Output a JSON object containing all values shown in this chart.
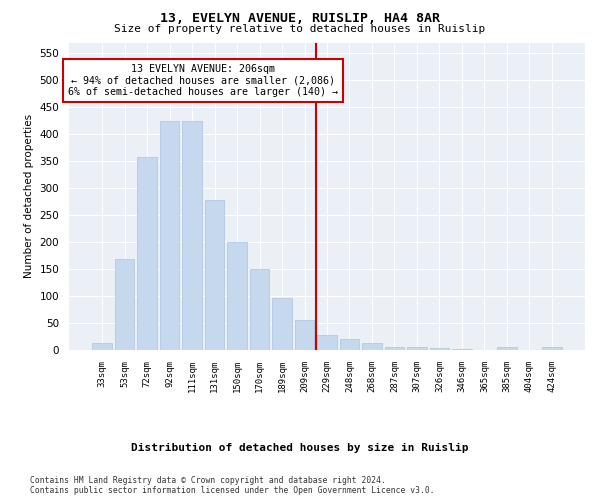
{
  "title1": "13, EVELYN AVENUE, RUISLIP, HA4 8AR",
  "title2": "Size of property relative to detached houses in Ruislip",
  "xlabel": "Distribution of detached houses by size in Ruislip",
  "ylabel": "Number of detached properties",
  "categories": [
    "33sqm",
    "53sqm",
    "72sqm",
    "92sqm",
    "111sqm",
    "131sqm",
    "150sqm",
    "170sqm",
    "189sqm",
    "209sqm",
    "229sqm",
    "248sqm",
    "268sqm",
    "287sqm",
    "307sqm",
    "326sqm",
    "346sqm",
    "365sqm",
    "385sqm",
    "404sqm",
    "424sqm"
  ],
  "values": [
    13,
    168,
    358,
    425,
    425,
    278,
    200,
    150,
    97,
    55,
    28,
    20,
    13,
    6,
    5,
    3,
    1,
    0,
    5,
    0,
    5
  ],
  "bar_color": "#c5d8ed",
  "bar_edge_color": "#a8c4e0",
  "vline_x": 9.5,
  "vline_color": "#cc0000",
  "annotation_line1": "13 EVELYN AVENUE: 206sqm",
  "annotation_line2": "← 94% of detached houses are smaller (2,086)",
  "annotation_line3": "6% of semi-detached houses are larger (140) →",
  "annotation_box_color": "#cc0000",
  "background_color": "#eaf0f6",
  "footer": "Contains HM Land Registry data © Crown copyright and database right 2024.\nContains public sector information licensed under the Open Government Licence v3.0.",
  "ylim": [
    0,
    570
  ],
  "yticks": [
    0,
    50,
    100,
    150,
    200,
    250,
    300,
    350,
    400,
    450,
    500,
    550
  ]
}
